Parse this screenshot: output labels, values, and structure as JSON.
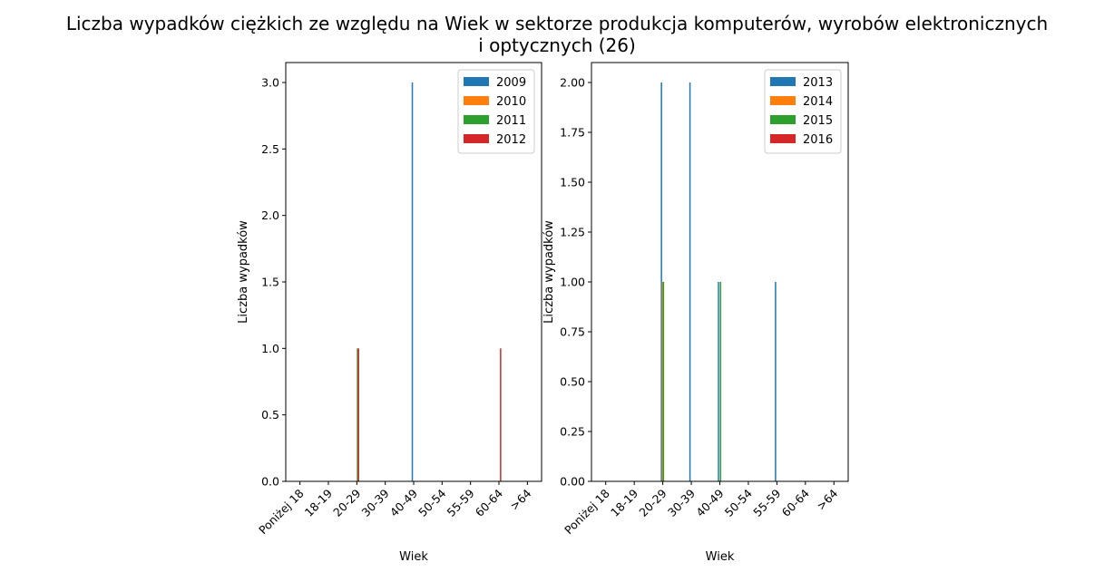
{
  "title": {
    "line1": "Liczba wypadków ciężkich ze względu na Wiek w sektorze produkcja komputerów, wyrobów elektronicznych",
    "line2": "i optycznych (26)"
  },
  "chart_data": [
    {
      "type": "bar",
      "xlabel": "Wiek",
      "ylabel": "Liczba wypadków",
      "categories": [
        "Poniżej 18",
        "18-19",
        "20-29",
        "30-39",
        "40-49",
        "50-54",
        "55-59",
        "60-64",
        ">64"
      ],
      "ylim": [
        0,
        3.15
      ],
      "yticks": [
        "0.0",
        "0.5",
        "1.0",
        "1.5",
        "2.0",
        "2.5",
        "3.0"
      ],
      "legend_position": "top-right",
      "series": [
        {
          "name": "2009",
          "color": "#1f77b4",
          "values": [
            0,
            0,
            0,
            0,
            3,
            0,
            0,
            0,
            0
          ]
        },
        {
          "name": "2010",
          "color": "#ff7f0e",
          "values": [
            0,
            0,
            0,
            0,
            0,
            0,
            0,
            0,
            0
          ]
        },
        {
          "name": "2011",
          "color": "#2ca02c",
          "values": [
            0,
            0,
            1,
            0,
            0,
            0,
            0,
            0,
            0
          ]
        },
        {
          "name": "2012",
          "color": "#d62728",
          "values": [
            0,
            0,
            1,
            0,
            0,
            0,
            0,
            1,
            0
          ]
        }
      ]
    },
    {
      "type": "bar",
      "xlabel": "Wiek",
      "ylabel": "Liczba wypadków",
      "categories": [
        "Poniżej 18",
        "18-19",
        "20-29",
        "30-39",
        "40-49",
        "50-54",
        "55-59",
        "60-64",
        ">64"
      ],
      "ylim": [
        0,
        2.1
      ],
      "yticks": [
        "0.00",
        "0.25",
        "0.50",
        "0.75",
        "1.00",
        "1.25",
        "1.50",
        "1.75",
        "2.00"
      ],
      "legend_position": "top-right",
      "series": [
        {
          "name": "2013",
          "color": "#1f77b4",
          "values": [
            0,
            0,
            2,
            2,
            1,
            0,
            1,
            0,
            0
          ]
        },
        {
          "name": "2014",
          "color": "#ff7f0e",
          "values": [
            0,
            0,
            1,
            0,
            0,
            0,
            0,
            0,
            0
          ]
        },
        {
          "name": "2015",
          "color": "#2ca02c",
          "values": [
            0,
            0,
            1,
            0,
            1,
            0,
            0,
            0,
            0
          ]
        },
        {
          "name": "2016",
          "color": "#d62728",
          "values": [
            0,
            0,
            0,
            0,
            0,
            0,
            0,
            0,
            0
          ]
        }
      ]
    }
  ]
}
